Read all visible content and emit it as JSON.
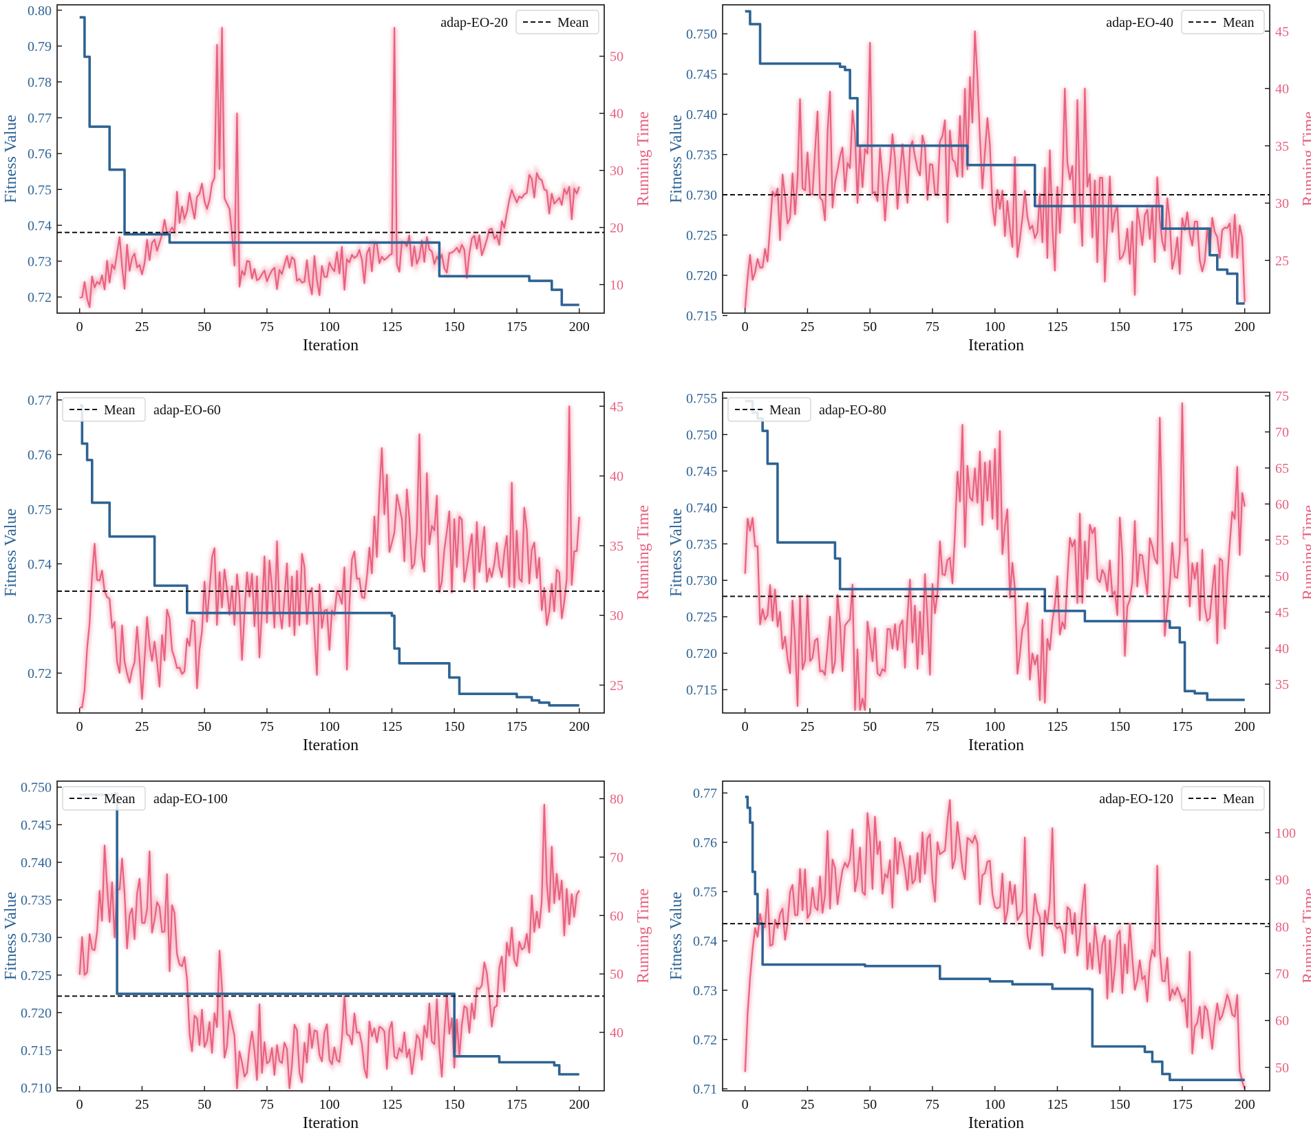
{
  "figure": {
    "description": "Convergence of fitness value and running time for six adap-EO variants"
  },
  "colors": {
    "fitness": "#2e6394",
    "runtime": "#e8617f",
    "runtime_glow": "#f7b7c6",
    "mean": "#111111"
  },
  "chart_data": [
    {
      "type": "line",
      "panel_label": "adap-EO-20",
      "legend_label": "Mean",
      "legend_position": "top-right",
      "xlabel": "Iteration",
      "ylabel_left": "Fitness Value",
      "ylabel_right": "Running Time",
      "xlim": [
        -9,
        210
      ],
      "ylim_left": [
        0.7155,
        0.8015
      ],
      "ylim_right": [
        5,
        59
      ],
      "xticks": [
        0,
        25,
        50,
        75,
        100,
        125,
        150,
        175,
        200
      ],
      "yticks_left": [
        0.72,
        0.73,
        0.74,
        0.75,
        0.76,
        0.77,
        0.78,
        0.79,
        0.8
      ],
      "yticks_left_labels": [
        "0.72",
        "0.73",
        "0.74",
        "0.75",
        "0.76",
        "0.77",
        "0.78",
        "0.79",
        "0.80"
      ],
      "yticks_right": [
        10,
        20,
        30,
        40,
        50
      ],
      "mean_fitness": 0.738,
      "fitness_steps": [
        [
          0,
          0.798
        ],
        [
          2,
          0.787
        ],
        [
          4,
          0.7675
        ],
        [
          12,
          0.7555
        ],
        [
          18,
          0.7375
        ],
        [
          36,
          0.7352
        ],
        [
          144,
          0.7258
        ],
        [
          180,
          0.7245
        ],
        [
          189,
          0.722
        ],
        [
          193,
          0.7178
        ],
        [
          200,
          0.7178
        ]
      ],
      "runtime_anchors": [
        [
          0,
          9
        ],
        [
          10,
          11
        ],
        [
          15,
          14
        ],
        [
          25,
          13
        ],
        [
          30,
          19
        ],
        [
          40,
          22
        ],
        [
          50,
          24
        ],
        [
          55,
          30
        ],
        [
          65,
          12
        ],
        [
          70,
          12
        ],
        [
          80,
          11.5
        ],
        [
          100,
          13
        ],
        [
          120,
          15
        ],
        [
          140,
          14
        ],
        [
          150,
          14
        ],
        [
          165,
          19
        ],
        [
          175,
          25
        ],
        [
          180,
          28
        ],
        [
          190,
          24
        ],
        [
          200,
          27
        ]
      ],
      "runtime_noise": 2.5,
      "runtime_spikes": [
        [
          55,
          52
        ],
        [
          57,
          55
        ],
        [
          63,
          40
        ],
        [
          126,
          55
        ]
      ],
      "runtime_seed": 11
    },
    {
      "type": "line",
      "panel_label": "adap-EO-40",
      "legend_label": "Mean",
      "legend_position": "top-right",
      "xlabel": "Iteration",
      "ylabel_left": "Fitness Value",
      "ylabel_right": "Running Time",
      "xlim": [
        -9,
        210
      ],
      "ylim_left": [
        0.7153,
        0.7536
      ],
      "ylim_right": [
        20.4,
        47.3
      ],
      "xticks": [
        0,
        25,
        50,
        75,
        100,
        125,
        150,
        175,
        200
      ],
      "yticks_left": [
        0.715,
        0.72,
        0.725,
        0.73,
        0.735,
        0.74,
        0.745,
        0.75
      ],
      "yticks_left_labels": [
        "0.715",
        "0.720",
        "0.725",
        "0.730",
        "0.735",
        "0.740",
        "0.745",
        "0.750"
      ],
      "yticks_right": [
        25,
        30,
        35,
        40,
        45
      ],
      "mean_fitness": 0.73,
      "fitness_steps": [
        [
          0,
          0.7528
        ],
        [
          2,
          0.7512
        ],
        [
          6,
          0.7463
        ],
        [
          38,
          0.7459
        ],
        [
          40,
          0.7455
        ],
        [
          42,
          0.742
        ],
        [
          45,
          0.7361
        ],
        [
          89,
          0.7337
        ],
        [
          116,
          0.7286
        ],
        [
          167,
          0.7258
        ],
        [
          186,
          0.7225
        ],
        [
          189,
          0.7207
        ],
        [
          193,
          0.7202
        ],
        [
          197,
          0.7165
        ],
        [
          200,
          0.7165
        ]
      ],
      "runtime_anchors": [
        [
          0,
          22
        ],
        [
          5,
          27
        ],
        [
          15,
          30
        ],
        [
          25,
          34
        ],
        [
          35,
          33
        ],
        [
          45,
          35
        ],
        [
          55,
          33
        ],
        [
          70,
          33
        ],
        [
          85,
          35
        ],
        [
          95,
          36
        ],
        [
          100,
          31
        ],
        [
          110,
          31
        ],
        [
          120,
          28
        ],
        [
          140,
          30
        ],
        [
          160,
          27
        ],
        [
          175,
          28
        ],
        [
          185,
          27
        ],
        [
          200,
          27
        ]
      ],
      "runtime_noise": 3.5,
      "runtime_spikes": [
        [
          29,
          38
        ],
        [
          50,
          44
        ],
        [
          90,
          41
        ],
        [
          92,
          45
        ],
        [
          93,
          41
        ],
        [
          128,
          40
        ],
        [
          133,
          39
        ],
        [
          136,
          40
        ]
      ],
      "runtime_seed": 23
    },
    {
      "type": "line",
      "panel_label": "adap-EO-60",
      "legend_label": "Mean",
      "legend_position": "top-left",
      "xlabel": "Iteration",
      "ylabel_left": "Fitness Value",
      "ylabel_right": "Running Time",
      "xlim": [
        -9,
        210
      ],
      "ylim_left": [
        0.7127,
        0.7714
      ],
      "ylim_right": [
        23,
        46
      ],
      "xticks": [
        0,
        25,
        50,
        75,
        100,
        125,
        150,
        175,
        200
      ],
      "yticks_left": [
        0.72,
        0.73,
        0.74,
        0.75,
        0.76,
        0.77
      ],
      "yticks_left_labels": [
        "0.72",
        "0.73",
        "0.74",
        "0.75",
        "0.76",
        "0.77"
      ],
      "yticks_right": [
        25,
        30,
        35,
        40,
        45
      ],
      "mean_fitness": 0.735,
      "fitness_steps": [
        [
          0,
          0.769
        ],
        [
          1,
          0.762
        ],
        [
          3,
          0.759
        ],
        [
          5,
          0.7512
        ],
        [
          12,
          0.745
        ],
        [
          30,
          0.736
        ],
        [
          43,
          0.731
        ],
        [
          125,
          0.7305
        ],
        [
          126,
          0.7245
        ],
        [
          128,
          0.7218
        ],
        [
          148,
          0.7192
        ],
        [
          152,
          0.7162
        ],
        [
          175,
          0.7156
        ],
        [
          181,
          0.715
        ],
        [
          184,
          0.7146
        ],
        [
          188,
          0.7141
        ],
        [
          200,
          0.7141
        ]
      ],
      "runtime_anchors": [
        [
          0,
          24
        ],
        [
          5,
          32
        ],
        [
          10,
          34
        ],
        [
          15,
          29
        ],
        [
          20,
          27
        ],
        [
          25,
          28
        ],
        [
          30,
          29
        ],
        [
          40,
          28
        ],
        [
          50,
          30
        ],
        [
          60,
          31
        ],
        [
          75,
          32
        ],
        [
          90,
          31
        ],
        [
          100,
          29
        ],
        [
          110,
          32
        ],
        [
          120,
          36
        ],
        [
          130,
          36
        ],
        [
          140,
          35
        ],
        [
          150,
          33
        ],
        [
          165,
          35
        ],
        [
          180,
          34
        ],
        [
          190,
          30
        ],
        [
          200,
          36
        ]
      ],
      "runtime_noise": 2.8,
      "runtime_spikes": [
        [
          25,
          24
        ],
        [
          121,
          42
        ],
        [
          136,
          43
        ],
        [
          196,
          45
        ]
      ],
      "runtime_seed": 37
    },
    {
      "type": "line",
      "panel_label": "adap-EO-80",
      "legend_label": "Mean",
      "legend_position": "top-left",
      "xlabel": "Iteration",
      "ylabel_left": "Fitness Value",
      "ylabel_right": "Running Time",
      "xlim": [
        -9,
        210
      ],
      "ylim_left": [
        0.7118,
        0.7558
      ],
      "ylim_right": [
        31,
        75.5
      ],
      "xticks": [
        0,
        25,
        50,
        75,
        100,
        125,
        150,
        175,
        200
      ],
      "yticks_left": [
        0.715,
        0.72,
        0.725,
        0.73,
        0.735,
        0.74,
        0.745,
        0.75,
        0.755
      ],
      "yticks_left_labels": [
        "0.715",
        "0.720",
        "0.725",
        "0.730",
        "0.735",
        "0.740",
        "0.745",
        "0.750",
        "0.755"
      ],
      "yticks_right": [
        35,
        40,
        45,
        50,
        55,
        60,
        65,
        70,
        75
      ],
      "mean_fitness": 0.7278,
      "fitness_steps": [
        [
          0,
          0.7546
        ],
        [
          3,
          0.753
        ],
        [
          5,
          0.7522
        ],
        [
          7,
          0.7505
        ],
        [
          9,
          0.746
        ],
        [
          13,
          0.7352
        ],
        [
          36,
          0.733
        ],
        [
          38,
          0.7288
        ],
        [
          120,
          0.7258
        ],
        [
          127,
          0.7258
        ],
        [
          136,
          0.7244
        ],
        [
          170,
          0.7235
        ],
        [
          174,
          0.7215
        ],
        [
          176,
          0.7148
        ],
        [
          180,
          0.7145
        ],
        [
          185,
          0.7136
        ],
        [
          200,
          0.7136
        ]
      ],
      "runtime_anchors": [
        [
          0,
          53
        ],
        [
          3,
          60
        ],
        [
          6,
          44
        ],
        [
          15,
          42
        ],
        [
          25,
          38
        ],
        [
          35,
          43
        ],
        [
          45,
          38
        ],
        [
          55,
          37
        ],
        [
          65,
          40
        ],
        [
          75,
          47
        ],
        [
          85,
          55
        ],
        [
          90,
          62
        ],
        [
          100,
          63
        ],
        [
          105,
          55
        ],
        [
          110,
          40
        ],
        [
          120,
          42
        ],
        [
          130,
          50
        ],
        [
          140,
          53
        ],
        [
          150,
          48
        ],
        [
          160,
          51
        ],
        [
          170,
          50
        ],
        [
          180,
          49
        ],
        [
          190,
          47
        ],
        [
          200,
          60
        ]
      ],
      "runtime_noise": 5.5,
      "runtime_spikes": [
        [
          87,
          71
        ],
        [
          98,
          66
        ],
        [
          166,
          72
        ],
        [
          175,
          74
        ]
      ],
      "runtime_seed": 51
    },
    {
      "type": "line",
      "panel_label": "adap-EO-100",
      "legend_label": "Mean",
      "legend_position": "top-left",
      "xlabel": "Iteration",
      "ylabel_left": "Fitness Value",
      "ylabel_right": "Running Time",
      "xlim": [
        -9,
        210
      ],
      "ylim_left": [
        0.7096,
        0.7508
      ],
      "ylim_right": [
        30,
        83
      ],
      "xticks": [
        0,
        25,
        50,
        75,
        100,
        125,
        150,
        175,
        200
      ],
      "yticks_left": [
        0.71,
        0.715,
        0.72,
        0.725,
        0.73,
        0.735,
        0.74,
        0.745,
        0.75
      ],
      "yticks_left_labels": [
        "0.710",
        "0.715",
        "0.720",
        "0.725",
        "0.730",
        "0.735",
        "0.740",
        "0.745",
        "0.750"
      ],
      "yticks_right": [
        40,
        50,
        60,
        70,
        80
      ],
      "mean_fitness": 0.7222,
      "fitness_steps": [
        [
          0,
          0.749
        ],
        [
          14,
          0.7492
        ],
        [
          15,
          0.7225
        ],
        [
          149,
          0.7225
        ],
        [
          150,
          0.7142
        ],
        [
          168,
          0.7134
        ],
        [
          190,
          0.713
        ],
        [
          192,
          0.7118
        ],
        [
          200,
          0.7118
        ]
      ],
      "runtime_anchors": [
        [
          0,
          52
        ],
        [
          10,
          62
        ],
        [
          20,
          63
        ],
        [
          30,
          63
        ],
        [
          40,
          55
        ],
        [
          45,
          40
        ],
        [
          55,
          40
        ],
        [
          65,
          36
        ],
        [
          80,
          37
        ],
        [
          100,
          38
        ],
        [
          120,
          38
        ],
        [
          140,
          37
        ],
        [
          150,
          42
        ],
        [
          160,
          44
        ],
        [
          170,
          50
        ],
        [
          180,
          58
        ],
        [
          190,
          65
        ],
        [
          200,
          63
        ]
      ],
      "runtime_noise": 4.5,
      "runtime_spikes": [
        [
          10,
          72
        ],
        [
          28,
          71
        ],
        [
          56,
          54
        ],
        [
          186,
          79
        ]
      ],
      "runtime_seed": 67
    },
    {
      "type": "line",
      "panel_label": "adap-EO-120",
      "legend_label": "Mean",
      "legend_position": "top-right",
      "xlabel": "Iteration",
      "ylabel_left": "Fitness Value",
      "ylabel_right": "Running Time",
      "xlim": [
        -9,
        210
      ],
      "ylim_left": [
        0.7096,
        0.7724
      ],
      "ylim_right": [
        45,
        111
      ],
      "xticks": [
        0,
        25,
        50,
        75,
        100,
        125,
        150,
        175,
        200
      ],
      "yticks_left": [
        0.71,
        0.72,
        0.73,
        0.74,
        0.75,
        0.76,
        0.77
      ],
      "yticks_left_labels": [
        "0.71",
        "0.72",
        "0.73",
        "0.74",
        "0.75",
        "0.76",
        "0.77"
      ],
      "yticks_right": [
        50,
        60,
        70,
        80,
        90,
        100
      ],
      "mean_fitness": 0.7435,
      "fitness_steps": [
        [
          0,
          0.7692
        ],
        [
          1,
          0.767
        ],
        [
          2,
          0.764
        ],
        [
          3,
          0.754
        ],
        [
          4,
          0.7495
        ],
        [
          5,
          0.7435
        ],
        [
          7,
          0.7352
        ],
        [
          38,
          0.7352
        ],
        [
          48,
          0.7349
        ],
        [
          77,
          0.7349
        ],
        [
          78,
          0.7323
        ],
        [
          98,
          0.7318
        ],
        [
          107,
          0.7312
        ],
        [
          123,
          0.7303
        ],
        [
          138,
          0.7302
        ],
        [
          139,
          0.7186
        ],
        [
          160,
          0.7175
        ],
        [
          163,
          0.7155
        ],
        [
          167,
          0.713
        ],
        [
          170,
          0.7118
        ],
        [
          200,
          0.7118
        ]
      ],
      "runtime_anchors": [
        [
          0,
          52
        ],
        [
          5,
          82
        ],
        [
          15,
          82
        ],
        [
          25,
          85
        ],
        [
          35,
          90
        ],
        [
          45,
          92
        ],
        [
          55,
          93
        ],
        [
          65,
          94
        ],
        [
          75,
          96
        ],
        [
          85,
          98
        ],
        [
          95,
          95
        ],
        [
          105,
          85
        ],
        [
          115,
          80
        ],
        [
          125,
          80
        ],
        [
          135,
          78
        ],
        [
          145,
          74
        ],
        [
          155,
          72
        ],
        [
          165,
          70
        ],
        [
          175,
          65
        ],
        [
          185,
          62
        ],
        [
          195,
          60
        ],
        [
          200,
          48
        ]
      ],
      "runtime_noise": 6.5,
      "runtime_spikes": [
        [
          82,
          107
        ],
        [
          112,
          99
        ],
        [
          123,
          101
        ],
        [
          165,
          93
        ]
      ],
      "runtime_seed": 89
    }
  ]
}
